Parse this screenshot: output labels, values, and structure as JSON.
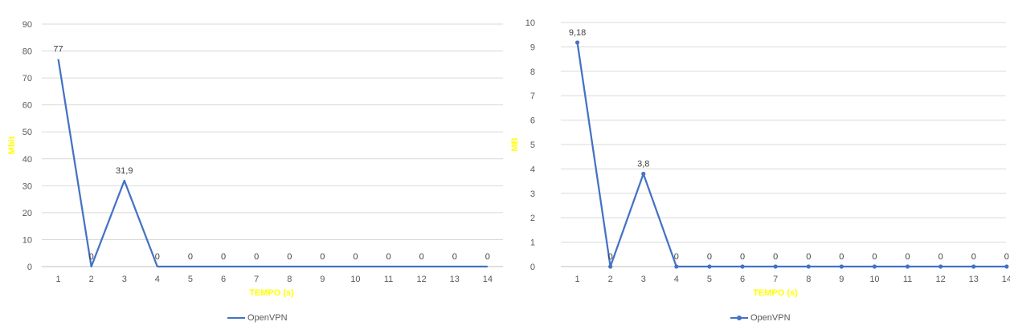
{
  "colors": {
    "series": "#4472C4",
    "axis_title": "#FFFF00",
    "grid": "#D9D9D9",
    "tick_text": "#595959"
  },
  "chart_data": [
    {
      "type": "line",
      "x": [
        "1",
        "2",
        "3",
        "4",
        "5",
        "6",
        "7",
        "8",
        "9",
        "10",
        "11",
        "12",
        "13",
        "14"
      ],
      "series": [
        {
          "name": "OpenVPN",
          "values": [
            77,
            0,
            31.9,
            0,
            0,
            0,
            0,
            0,
            0,
            0,
            0,
            0,
            0,
            0
          ],
          "labels": [
            "77",
            "0",
            "31,9",
            "0",
            "0",
            "0",
            "0",
            "0",
            "0",
            "0",
            "0",
            "0",
            "0",
            "0"
          ]
        }
      ],
      "markers": false,
      "title": "",
      "xlabel": "TEMPO (s)",
      "ylabel": "Mbit",
      "ylim": [
        0,
        90
      ],
      "yticks": [
        0,
        10,
        20,
        30,
        40,
        50,
        60,
        70,
        80,
        90
      ],
      "grid": true,
      "legend": "bottom"
    },
    {
      "type": "line",
      "x": [
        "1",
        "2",
        "3",
        "4",
        "5",
        "6",
        "7",
        "8",
        "9",
        "10",
        "11",
        "12",
        "13",
        "14"
      ],
      "series": [
        {
          "name": "OpenVPN",
          "values": [
            9.18,
            0,
            3.8,
            0,
            0,
            0,
            0,
            0,
            0,
            0,
            0,
            0,
            0,
            0
          ],
          "labels": [
            "9,18",
            "0",
            "3,8",
            "0",
            "0",
            "0",
            "0",
            "0",
            "0",
            "0",
            "0",
            "0",
            "0",
            "0"
          ]
        }
      ],
      "markers": true,
      "title": "",
      "xlabel": "TEMPO (s)",
      "ylabel": "MB",
      "ylim": [
        0,
        10
      ],
      "yticks": [
        0,
        1,
        2,
        3,
        4,
        5,
        6,
        7,
        8,
        9,
        10
      ],
      "grid": true,
      "legend": "bottom"
    }
  ]
}
